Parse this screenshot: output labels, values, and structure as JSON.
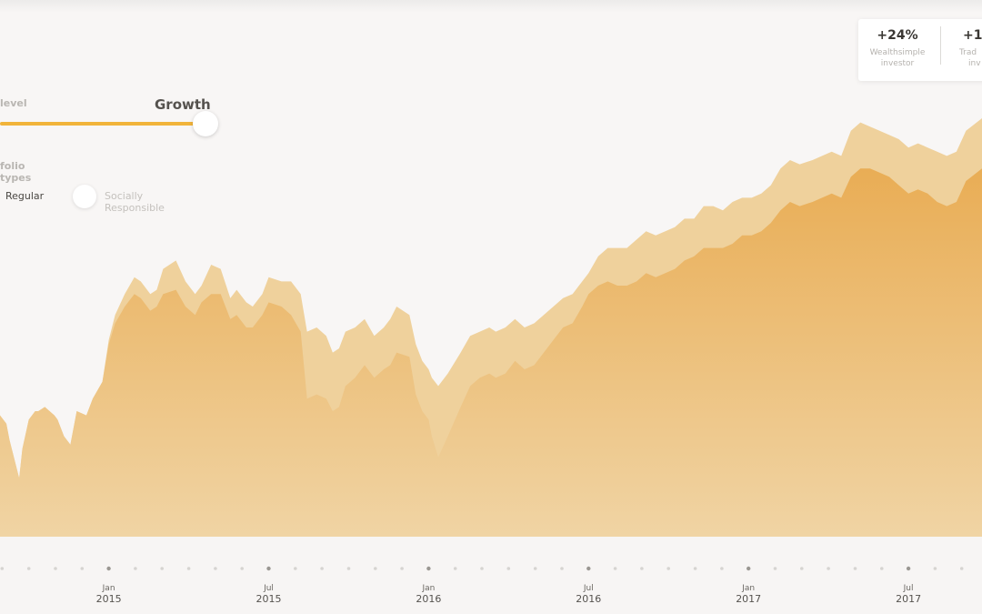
{
  "controls": {
    "risk_label": "level",
    "risk_value": "Growth",
    "types_label": "folio types",
    "type_regular": "Regular",
    "type_sri": "Socially Responsible"
  },
  "returns_card": [
    {
      "pct": "+24%",
      "line1": "Wealthsimple",
      "line2": "investor"
    },
    {
      "pct": "+1",
      "line1": "Trad",
      "line2": "inv"
    }
  ],
  "colors": {
    "background": "#f8f6f5",
    "front_area": "#e9ad55",
    "back_area": "#efd19c",
    "slider": "#f1b43a"
  },
  "chart_data": {
    "type": "area",
    "title": "",
    "xlabel": "",
    "ylabel": "",
    "x_ticks": [
      {
        "month": "Jan",
        "year": "2015",
        "x": 2015.0
      },
      {
        "month": "Jul",
        "year": "2015",
        "x": 2015.5
      },
      {
        "month": "Jan",
        "year": "2016",
        "x": 2016.0
      },
      {
        "month": "Jul",
        "year": "2016",
        "x": 2016.5
      },
      {
        "month": "Jan",
        "year": "2017",
        "x": 2017.0
      },
      {
        "month": "Jul",
        "year": "2017",
        "x": 2017.5
      }
    ],
    "xlim": [
      2014.66,
      2017.73
    ],
    "ylim": [
      0,
      100
    ],
    "grid": false,
    "series": [
      {
        "name": "",
        "values": [
          [
            2014.66,
            29
          ],
          [
            2014.68,
            27
          ],
          [
            2014.69,
            23
          ],
          [
            2014.72,
            14
          ],
          [
            2014.73,
            21
          ],
          [
            2014.75,
            28
          ],
          [
            2014.77,
            30
          ],
          [
            2014.78,
            30
          ],
          [
            2014.8,
            31
          ],
          [
            2014.83,
            29
          ],
          [
            2014.84,
            28
          ],
          [
            2014.86,
            24
          ],
          [
            2014.88,
            22
          ],
          [
            2014.9,
            30
          ],
          [
            2014.93,
            29
          ],
          [
            2014.95,
            33
          ],
          [
            2014.98,
            37
          ],
          [
            2015.0,
            47
          ],
          [
            2015.02,
            53
          ],
          [
            2015.05,
            58
          ],
          [
            2015.08,
            62
          ],
          [
            2015.1,
            61
          ],
          [
            2015.13,
            58
          ],
          [
            2015.15,
            59
          ],
          [
            2015.17,
            64
          ],
          [
            2015.21,
            66
          ],
          [
            2015.24,
            61
          ],
          [
            2015.27,
            58
          ],
          [
            2015.29,
            60
          ],
          [
            2015.32,
            65
          ],
          [
            2015.35,
            64
          ],
          [
            2015.38,
            57
          ],
          [
            2015.4,
            59
          ],
          [
            2015.43,
            56
          ],
          [
            2015.45,
            55
          ],
          [
            2015.48,
            58
          ],
          [
            2015.5,
            62
          ],
          [
            2015.54,
            61
          ],
          [
            2015.57,
            61
          ],
          [
            2015.6,
            58
          ],
          [
            2015.62,
            49
          ],
          [
            2015.65,
            50
          ],
          [
            2015.68,
            48
          ],
          [
            2015.7,
            44
          ],
          [
            2015.72,
            45
          ],
          [
            2015.74,
            49
          ],
          [
            2015.77,
            50
          ],
          [
            2015.8,
            52
          ],
          [
            2015.83,
            48
          ],
          [
            2015.86,
            50
          ],
          [
            2015.88,
            52
          ],
          [
            2015.9,
            55
          ],
          [
            2015.94,
            53
          ],
          [
            2015.96,
            46
          ],
          [
            2015.98,
            42
          ],
          [
            2016.0,
            40
          ],
          [
            2016.01,
            38
          ],
          [
            2016.03,
            36
          ],
          [
            2016.06,
            39
          ],
          [
            2016.1,
            44
          ],
          [
            2016.13,
            48
          ],
          [
            2016.16,
            49
          ],
          [
            2016.19,
            50
          ],
          [
            2016.21,
            49
          ],
          [
            2016.24,
            50
          ],
          [
            2016.27,
            52
          ],
          [
            2016.3,
            50
          ],
          [
            2016.33,
            51
          ],
          [
            2016.36,
            53
          ],
          [
            2016.39,
            55
          ],
          [
            2016.42,
            57
          ],
          [
            2016.45,
            58
          ],
          [
            2016.48,
            61
          ],
          [
            2016.5,
            63
          ],
          [
            2016.53,
            67
          ],
          [
            2016.56,
            69
          ],
          [
            2016.59,
            69
          ],
          [
            2016.62,
            69
          ],
          [
            2016.65,
            71
          ],
          [
            2016.68,
            73
          ],
          [
            2016.71,
            72
          ],
          [
            2016.74,
            73
          ],
          [
            2016.77,
            74
          ],
          [
            2016.8,
            76
          ],
          [
            2016.83,
            76
          ],
          [
            2016.86,
            79
          ],
          [
            2016.89,
            79
          ],
          [
            2016.92,
            78
          ],
          [
            2016.95,
            80
          ],
          [
            2016.98,
            81
          ],
          [
            2017.01,
            81
          ],
          [
            2017.04,
            82
          ],
          [
            2017.07,
            84
          ],
          [
            2017.1,
            88
          ],
          [
            2017.13,
            90
          ],
          [
            2017.16,
            89
          ],
          [
            2017.2,
            90
          ],
          [
            2017.23,
            91
          ],
          [
            2017.26,
            92
          ],
          [
            2017.29,
            91
          ],
          [
            2017.32,
            97
          ],
          [
            2017.35,
            99
          ],
          [
            2017.38,
            98
          ],
          [
            2017.41,
            97
          ],
          [
            2017.44,
            96
          ],
          [
            2017.47,
            95
          ],
          [
            2017.5,
            93
          ],
          [
            2017.53,
            94
          ],
          [
            2017.56,
            93
          ],
          [
            2017.59,
            92
          ],
          [
            2017.62,
            91
          ],
          [
            2017.65,
            92
          ],
          [
            2017.68,
            97
          ],
          [
            2017.73,
            100
          ]
        ]
      },
      {
        "name": "",
        "values": [
          [
            2014.66,
            29
          ],
          [
            2014.68,
            27
          ],
          [
            2014.69,
            23
          ],
          [
            2014.72,
            14
          ],
          [
            2014.73,
            21
          ],
          [
            2014.75,
            28
          ],
          [
            2014.77,
            30
          ],
          [
            2014.78,
            30
          ],
          [
            2014.8,
            31
          ],
          [
            2014.83,
            29
          ],
          [
            2014.84,
            28
          ],
          [
            2014.86,
            24
          ],
          [
            2014.88,
            22
          ],
          [
            2014.9,
            30
          ],
          [
            2014.93,
            29
          ],
          [
            2014.95,
            33
          ],
          [
            2014.98,
            37
          ],
          [
            2015.0,
            46
          ],
          [
            2015.02,
            51
          ],
          [
            2015.05,
            55
          ],
          [
            2015.08,
            58
          ],
          [
            2015.1,
            57
          ],
          [
            2015.13,
            54
          ],
          [
            2015.15,
            55
          ],
          [
            2015.17,
            58
          ],
          [
            2015.21,
            59
          ],
          [
            2015.24,
            55
          ],
          [
            2015.27,
            53
          ],
          [
            2015.29,
            56
          ],
          [
            2015.32,
            58
          ],
          [
            2015.35,
            58
          ],
          [
            2015.38,
            52
          ],
          [
            2015.4,
            53
          ],
          [
            2015.43,
            50
          ],
          [
            2015.45,
            50
          ],
          [
            2015.48,
            53
          ],
          [
            2015.5,
            56
          ],
          [
            2015.54,
            55
          ],
          [
            2015.57,
            53
          ],
          [
            2015.6,
            49
          ],
          [
            2015.62,
            33
          ],
          [
            2015.65,
            34
          ],
          [
            2015.68,
            33
          ],
          [
            2015.7,
            30
          ],
          [
            2015.72,
            31
          ],
          [
            2015.74,
            36
          ],
          [
            2015.77,
            38
          ],
          [
            2015.8,
            41
          ],
          [
            2015.83,
            38
          ],
          [
            2015.86,
            40
          ],
          [
            2015.88,
            41
          ],
          [
            2015.9,
            44
          ],
          [
            2015.94,
            43
          ],
          [
            2015.96,
            34
          ],
          [
            2015.98,
            30
          ],
          [
            2016.0,
            28
          ],
          [
            2016.01,
            24
          ],
          [
            2016.03,
            19
          ],
          [
            2016.06,
            24
          ],
          [
            2016.1,
            31
          ],
          [
            2016.13,
            36
          ],
          [
            2016.16,
            38
          ],
          [
            2016.19,
            39
          ],
          [
            2016.21,
            38
          ],
          [
            2016.24,
            39
          ],
          [
            2016.27,
            42
          ],
          [
            2016.3,
            40
          ],
          [
            2016.33,
            41
          ],
          [
            2016.36,
            44
          ],
          [
            2016.39,
            47
          ],
          [
            2016.42,
            50
          ],
          [
            2016.45,
            51
          ],
          [
            2016.48,
            55
          ],
          [
            2016.5,
            58
          ],
          [
            2016.53,
            60
          ],
          [
            2016.56,
            61
          ],
          [
            2016.59,
            60
          ],
          [
            2016.62,
            60
          ],
          [
            2016.65,
            61
          ],
          [
            2016.68,
            63
          ],
          [
            2016.71,
            62
          ],
          [
            2016.74,
            63
          ],
          [
            2016.77,
            64
          ],
          [
            2016.8,
            66
          ],
          [
            2016.83,
            67
          ],
          [
            2016.86,
            69
          ],
          [
            2016.89,
            69
          ],
          [
            2016.92,
            69
          ],
          [
            2016.95,
            70
          ],
          [
            2016.98,
            72
          ],
          [
            2017.01,
            72
          ],
          [
            2017.04,
            73
          ],
          [
            2017.07,
            75
          ],
          [
            2017.1,
            78
          ],
          [
            2017.13,
            80
          ],
          [
            2017.16,
            79
          ],
          [
            2017.2,
            80
          ],
          [
            2017.23,
            81
          ],
          [
            2017.26,
            82
          ],
          [
            2017.29,
            81
          ],
          [
            2017.32,
            86
          ],
          [
            2017.35,
            88
          ],
          [
            2017.38,
            88
          ],
          [
            2017.41,
            87
          ],
          [
            2017.44,
            86
          ],
          [
            2017.47,
            84
          ],
          [
            2017.5,
            82
          ],
          [
            2017.53,
            83
          ],
          [
            2017.56,
            82
          ],
          [
            2017.59,
            80
          ],
          [
            2017.62,
            79
          ],
          [
            2017.65,
            80
          ],
          [
            2017.68,
            85
          ],
          [
            2017.73,
            88
          ]
        ]
      }
    ]
  }
}
